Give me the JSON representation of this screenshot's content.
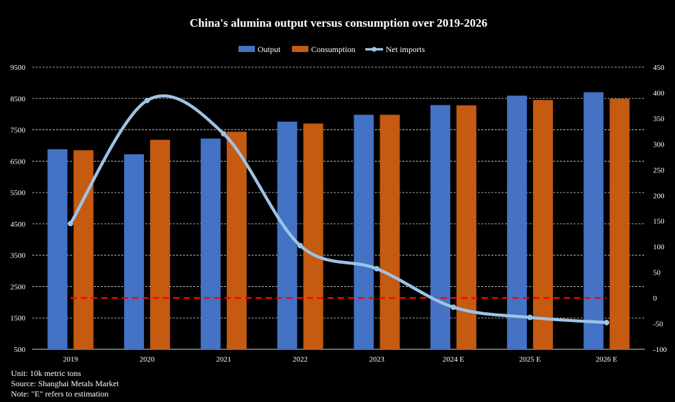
{
  "chart_data": {
    "type": "bar",
    "title": "China's alumina output versus consumption over 2019-2026",
    "categories": [
      "2019",
      "2020",
      "2021",
      "2022",
      "2023",
      "2024 E",
      "2025 E",
      "2026 E"
    ],
    "series": [
      {
        "name": "Output",
        "type": "bar",
        "axis": "left",
        "color": "#4472C4",
        "values": [
          6880,
          6720,
          7220,
          7760,
          7980,
          8290,
          8590,
          8700
        ]
      },
      {
        "name": "Consumption",
        "type": "bar",
        "axis": "left",
        "color": "#C55A11",
        "values": [
          6850,
          7180,
          7440,
          7700,
          7980,
          8280,
          8450,
          8490
        ]
      },
      {
        "name": "Net imports",
        "type": "line",
        "axis": "right",
        "color": "#9DC3E6",
        "values": [
          145,
          385,
          320,
          102,
          57,
          -18,
          -38,
          -48
        ]
      }
    ],
    "y_left": {
      "min": 500,
      "max": 9500,
      "ticks": [
        500,
        1500,
        2500,
        3500,
        4500,
        5500,
        6500,
        7500,
        8500,
        9500
      ]
    },
    "y_right": {
      "min": -100,
      "max": 450,
      "ticks": [
        -100,
        -50,
        0,
        50,
        100,
        150,
        200,
        250,
        300,
        350,
        400,
        450
      ]
    },
    "zero_line": {
      "value": 0,
      "axis": "right",
      "color": "#FF0000"
    },
    "grid": true,
    "legend_position": "top-center"
  },
  "notes": [
    "Unit: 10k metric tons",
    "Source: Shanghai Metals Market",
    "Note: \"E\" refers to estimation"
  ]
}
